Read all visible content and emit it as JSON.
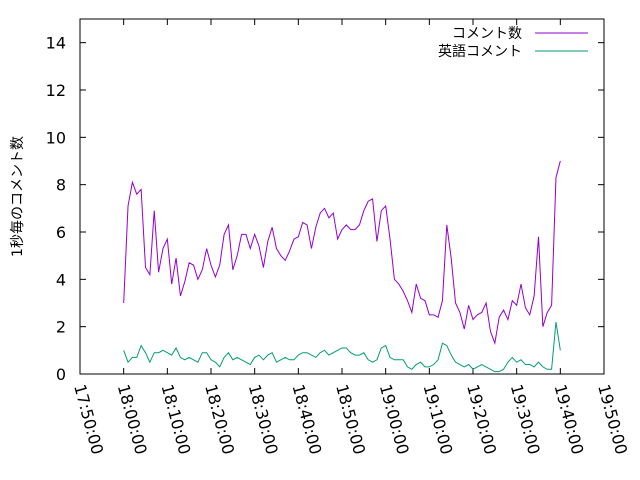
{
  "chart_data": {
    "type": "line",
    "ylabel": "1秒毎のコメント数",
    "ylim": [
      0,
      15
    ],
    "yticks": [
      0,
      2,
      4,
      6,
      8,
      10,
      12,
      14
    ],
    "xlim": [
      "17:50:00",
      "19:50:00"
    ],
    "xticks": [
      "17:50:00",
      "18:00:00",
      "18:10:00",
      "18:20:00",
      "18:30:00",
      "18:40:00",
      "18:50:00",
      "19:00:00",
      "19:10:00",
      "19:20:00",
      "19:30:00",
      "19:40:00",
      "19:50:00"
    ],
    "legend_position": "top-right",
    "grid": false,
    "series": [
      {
        "name": "コメント数",
        "color": "#9400d3",
        "points": [
          [
            "18:00:00",
            3.0
          ],
          [
            "18:01:00",
            7.1
          ],
          [
            "18:02:00",
            8.1
          ],
          [
            "18:03:00",
            7.6
          ],
          [
            "18:04:00",
            7.8
          ],
          [
            "18:05:00",
            4.5
          ],
          [
            "18:06:00",
            4.2
          ],
          [
            "18:07:00",
            6.9
          ],
          [
            "18:08:00",
            4.3
          ],
          [
            "18:09:00",
            5.3
          ],
          [
            "18:10:00",
            5.7
          ],
          [
            "18:11:00",
            3.8
          ],
          [
            "18:12:00",
            4.9
          ],
          [
            "18:13:00",
            3.3
          ],
          [
            "18:14:00",
            3.9
          ],
          [
            "18:15:00",
            4.7
          ],
          [
            "18:16:00",
            4.6
          ],
          [
            "18:17:00",
            4.0
          ],
          [
            "18:18:00",
            4.4
          ],
          [
            "18:19:00",
            5.3
          ],
          [
            "18:20:00",
            4.6
          ],
          [
            "18:21:00",
            4.1
          ],
          [
            "18:22:00",
            4.6
          ],
          [
            "18:23:00",
            5.9
          ],
          [
            "18:24:00",
            6.3
          ],
          [
            "18:25:00",
            4.4
          ],
          [
            "18:26:00",
            5.0
          ],
          [
            "18:27:00",
            5.9
          ],
          [
            "18:28:00",
            5.9
          ],
          [
            "18:29:00",
            5.3
          ],
          [
            "18:30:00",
            5.9
          ],
          [
            "18:31:00",
            5.4
          ],
          [
            "18:32:00",
            4.5
          ],
          [
            "18:33:00",
            5.6
          ],
          [
            "18:34:00",
            6.2
          ],
          [
            "18:35:00",
            5.3
          ],
          [
            "18:36:00",
            5.0
          ],
          [
            "18:37:00",
            4.8
          ],
          [
            "18:38:00",
            5.2
          ],
          [
            "18:39:00",
            5.7
          ],
          [
            "18:40:00",
            5.8
          ],
          [
            "18:41:00",
            6.4
          ],
          [
            "18:42:00",
            6.3
          ],
          [
            "18:43:00",
            5.3
          ],
          [
            "18:44:00",
            6.2
          ],
          [
            "18:45:00",
            6.8
          ],
          [
            "18:46:00",
            7.0
          ],
          [
            "18:47:00",
            6.6
          ],
          [
            "18:48:00",
            6.8
          ],
          [
            "18:49:00",
            5.7
          ],
          [
            "18:50:00",
            6.1
          ],
          [
            "18:51:00",
            6.3
          ],
          [
            "18:52:00",
            6.1
          ],
          [
            "18:53:00",
            6.1
          ],
          [
            "18:54:00",
            6.3
          ],
          [
            "18:55:00",
            6.9
          ],
          [
            "18:56:00",
            7.3
          ],
          [
            "18:57:00",
            7.4
          ],
          [
            "18:58:00",
            5.6
          ],
          [
            "18:59:00",
            6.9
          ],
          [
            "19:00:00",
            7.1
          ],
          [
            "19:01:00",
            5.7
          ],
          [
            "19:02:00",
            4.0
          ],
          [
            "19:03:00",
            3.8
          ],
          [
            "19:04:00",
            3.5
          ],
          [
            "19:05:00",
            3.1
          ],
          [
            "19:06:00",
            2.6
          ],
          [
            "19:07:00",
            3.8
          ],
          [
            "19:08:00",
            3.2
          ],
          [
            "19:09:00",
            3.1
          ],
          [
            "19:10:00",
            2.5
          ],
          [
            "19:11:00",
            2.5
          ],
          [
            "19:12:00",
            2.4
          ],
          [
            "19:13:00",
            3.1
          ],
          [
            "19:14:00",
            6.3
          ],
          [
            "19:15:00",
            4.9
          ],
          [
            "19:16:00",
            3.0
          ],
          [
            "19:17:00",
            2.6
          ],
          [
            "19:18:00",
            1.9
          ],
          [
            "19:19:00",
            2.9
          ],
          [
            "19:20:00",
            2.3
          ],
          [
            "19:21:00",
            2.5
          ],
          [
            "19:22:00",
            2.6
          ],
          [
            "19:23:00",
            3.0
          ],
          [
            "19:24:00",
            1.8
          ],
          [
            "19:25:00",
            1.3
          ],
          [
            "19:26:00",
            2.4
          ],
          [
            "19:27:00",
            2.7
          ],
          [
            "19:28:00",
            2.3
          ],
          [
            "19:29:00",
            3.1
          ],
          [
            "19:30:00",
            2.9
          ],
          [
            "19:31:00",
            3.8
          ],
          [
            "19:32:00",
            2.8
          ],
          [
            "19:33:00",
            2.5
          ],
          [
            "19:34:00",
            3.3
          ],
          [
            "19:35:00",
            5.8
          ],
          [
            "19:36:00",
            2.0
          ],
          [
            "19:37:00",
            2.6
          ],
          [
            "19:38:00",
            2.9
          ],
          [
            "19:39:00",
            8.3
          ],
          [
            "19:40:00",
            9.0
          ]
        ]
      },
      {
        "name": "英語コメント",
        "color": "#009e73",
        "points": [
          [
            "18:00:00",
            1.0
          ],
          [
            "18:01:00",
            0.5
          ],
          [
            "18:02:00",
            0.7
          ],
          [
            "18:03:00",
            0.7
          ],
          [
            "18:04:00",
            1.2
          ],
          [
            "18:05:00",
            0.9
          ],
          [
            "18:06:00",
            0.5
          ],
          [
            "18:07:00",
            0.9
          ],
          [
            "18:08:00",
            0.9
          ],
          [
            "18:09:00",
            1.0
          ],
          [
            "18:10:00",
            0.9
          ],
          [
            "18:11:00",
            0.8
          ],
          [
            "18:12:00",
            1.1
          ],
          [
            "18:13:00",
            0.7
          ],
          [
            "18:14:00",
            0.6
          ],
          [
            "18:15:00",
            0.7
          ],
          [
            "18:16:00",
            0.6
          ],
          [
            "18:17:00",
            0.5
          ],
          [
            "18:18:00",
            0.9
          ],
          [
            "18:19:00",
            0.9
          ],
          [
            "18:20:00",
            0.6
          ],
          [
            "18:21:00",
            0.5
          ],
          [
            "18:22:00",
            0.3
          ],
          [
            "18:23:00",
            0.7
          ],
          [
            "18:24:00",
            0.9
          ],
          [
            "18:25:00",
            0.6
          ],
          [
            "18:26:00",
            0.7
          ],
          [
            "18:27:00",
            0.6
          ],
          [
            "18:28:00",
            0.5
          ],
          [
            "18:29:00",
            0.4
          ],
          [
            "18:30:00",
            0.7
          ],
          [
            "18:31:00",
            0.8
          ],
          [
            "18:32:00",
            0.6
          ],
          [
            "18:33:00",
            0.8
          ],
          [
            "18:34:00",
            0.9
          ],
          [
            "18:35:00",
            0.5
          ],
          [
            "18:36:00",
            0.6
          ],
          [
            "18:37:00",
            0.7
          ],
          [
            "18:38:00",
            0.6
          ],
          [
            "18:39:00",
            0.6
          ],
          [
            "18:40:00",
            0.8
          ],
          [
            "18:41:00",
            0.9
          ],
          [
            "18:42:00",
            0.9
          ],
          [
            "18:43:00",
            0.8
          ],
          [
            "18:44:00",
            0.7
          ],
          [
            "18:45:00",
            0.9
          ],
          [
            "18:46:00",
            1.0
          ],
          [
            "18:47:00",
            0.8
          ],
          [
            "18:48:00",
            0.9
          ],
          [
            "18:49:00",
            1.0
          ],
          [
            "18:50:00",
            1.1
          ],
          [
            "18:51:00",
            1.1
          ],
          [
            "18:52:00",
            0.9
          ],
          [
            "18:53:00",
            0.8
          ],
          [
            "18:54:00",
            0.8
          ],
          [
            "18:55:00",
            0.9
          ],
          [
            "18:56:00",
            0.6
          ],
          [
            "18:57:00",
            0.5
          ],
          [
            "18:58:00",
            0.6
          ],
          [
            "18:59:00",
            1.1
          ],
          [
            "19:00:00",
            1.2
          ],
          [
            "19:01:00",
            0.7
          ],
          [
            "19:02:00",
            0.6
          ],
          [
            "19:03:00",
            0.6
          ],
          [
            "19:04:00",
            0.6
          ],
          [
            "19:05:00",
            0.3
          ],
          [
            "19:06:00",
            0.2
          ],
          [
            "19:07:00",
            0.4
          ],
          [
            "19:08:00",
            0.5
          ],
          [
            "19:09:00",
            0.3
          ],
          [
            "19:10:00",
            0.3
          ],
          [
            "19:11:00",
            0.4
          ],
          [
            "19:12:00",
            0.6
          ],
          [
            "19:13:00",
            1.3
          ],
          [
            "19:14:00",
            1.2
          ],
          [
            "19:15:00",
            0.8
          ],
          [
            "19:16:00",
            0.5
          ],
          [
            "19:17:00",
            0.4
          ],
          [
            "19:18:00",
            0.3
          ],
          [
            "19:19:00",
            0.4
          ],
          [
            "19:20:00",
            0.2
          ],
          [
            "19:21:00",
            0.3
          ],
          [
            "19:22:00",
            0.4
          ],
          [
            "19:23:00",
            0.3
          ],
          [
            "19:24:00",
            0.2
          ],
          [
            "19:25:00",
            0.1
          ],
          [
            "19:26:00",
            0.1
          ],
          [
            "19:27:00",
            0.2
          ],
          [
            "19:28:00",
            0.5
          ],
          [
            "19:29:00",
            0.7
          ],
          [
            "19:30:00",
            0.5
          ],
          [
            "19:31:00",
            0.6
          ],
          [
            "19:32:00",
            0.4
          ],
          [
            "19:33:00",
            0.4
          ],
          [
            "19:34:00",
            0.3
          ],
          [
            "19:35:00",
            0.5
          ],
          [
            "19:36:00",
            0.3
          ],
          [
            "19:37:00",
            0.2
          ],
          [
            "19:38:00",
            0.2
          ],
          [
            "19:39:00",
            2.2
          ],
          [
            "19:40:00",
            1.0
          ]
        ]
      }
    ]
  }
}
